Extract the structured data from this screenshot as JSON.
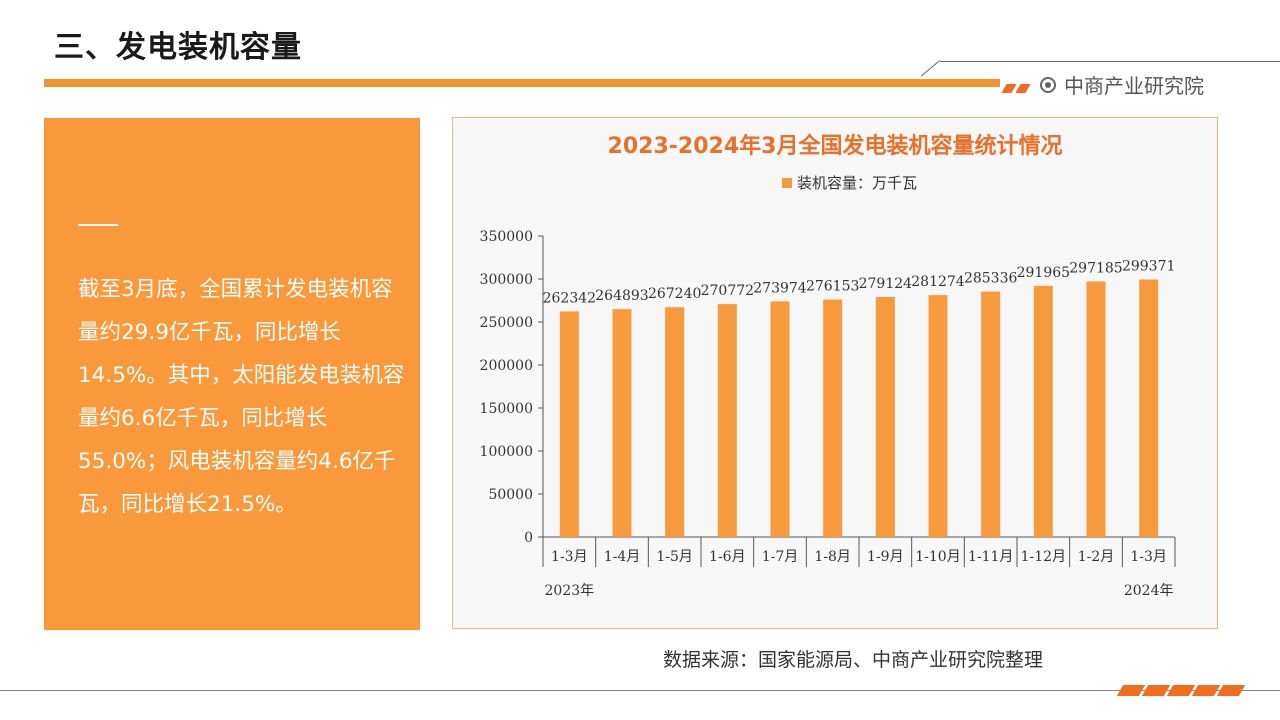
{
  "page": {
    "title": "三、发电装机容量",
    "brand": "中商产业研究院",
    "summary": "截至3月底，全国累计发电装机容量约29.9亿千瓦，同比增长14.5%。其中，太阳能发电装机容量约6.6亿千瓦，同比增长55.0%；风电装机容量约4.6亿千瓦，同比增长21.5%。",
    "source": "数据来源：国家能源局、中商产业研究院整理"
  },
  "colors": {
    "accent": "#f39433",
    "bar": "#f79a3e",
    "title": "#e8702a",
    "panel": "#f9993b"
  },
  "chart_data": {
    "type": "bar",
    "title": "2023-2024年3月全国发电装机容量统计情况",
    "legend": "装机容量：万千瓦",
    "legend_position": "top-center",
    "categories": [
      "1-3月",
      "1-4月",
      "1-5月",
      "1-6月",
      "1-7月",
      "1-8月",
      "1-9月",
      "1-10月",
      "1-11月",
      "1-12月",
      "1-2月",
      "1-3月"
    ],
    "values": [
      262342,
      264893,
      267240,
      270772,
      273974,
      276153,
      279124,
      281274,
      285336,
      291965,
      297185,
      299371
    ],
    "ylim": [
      0,
      350000
    ],
    "yticks": [
      0,
      50000,
      100000,
      150000,
      200000,
      250000,
      300000,
      350000
    ],
    "year_labels": [
      "2023年",
      "2024年"
    ],
    "grid": false
  }
}
